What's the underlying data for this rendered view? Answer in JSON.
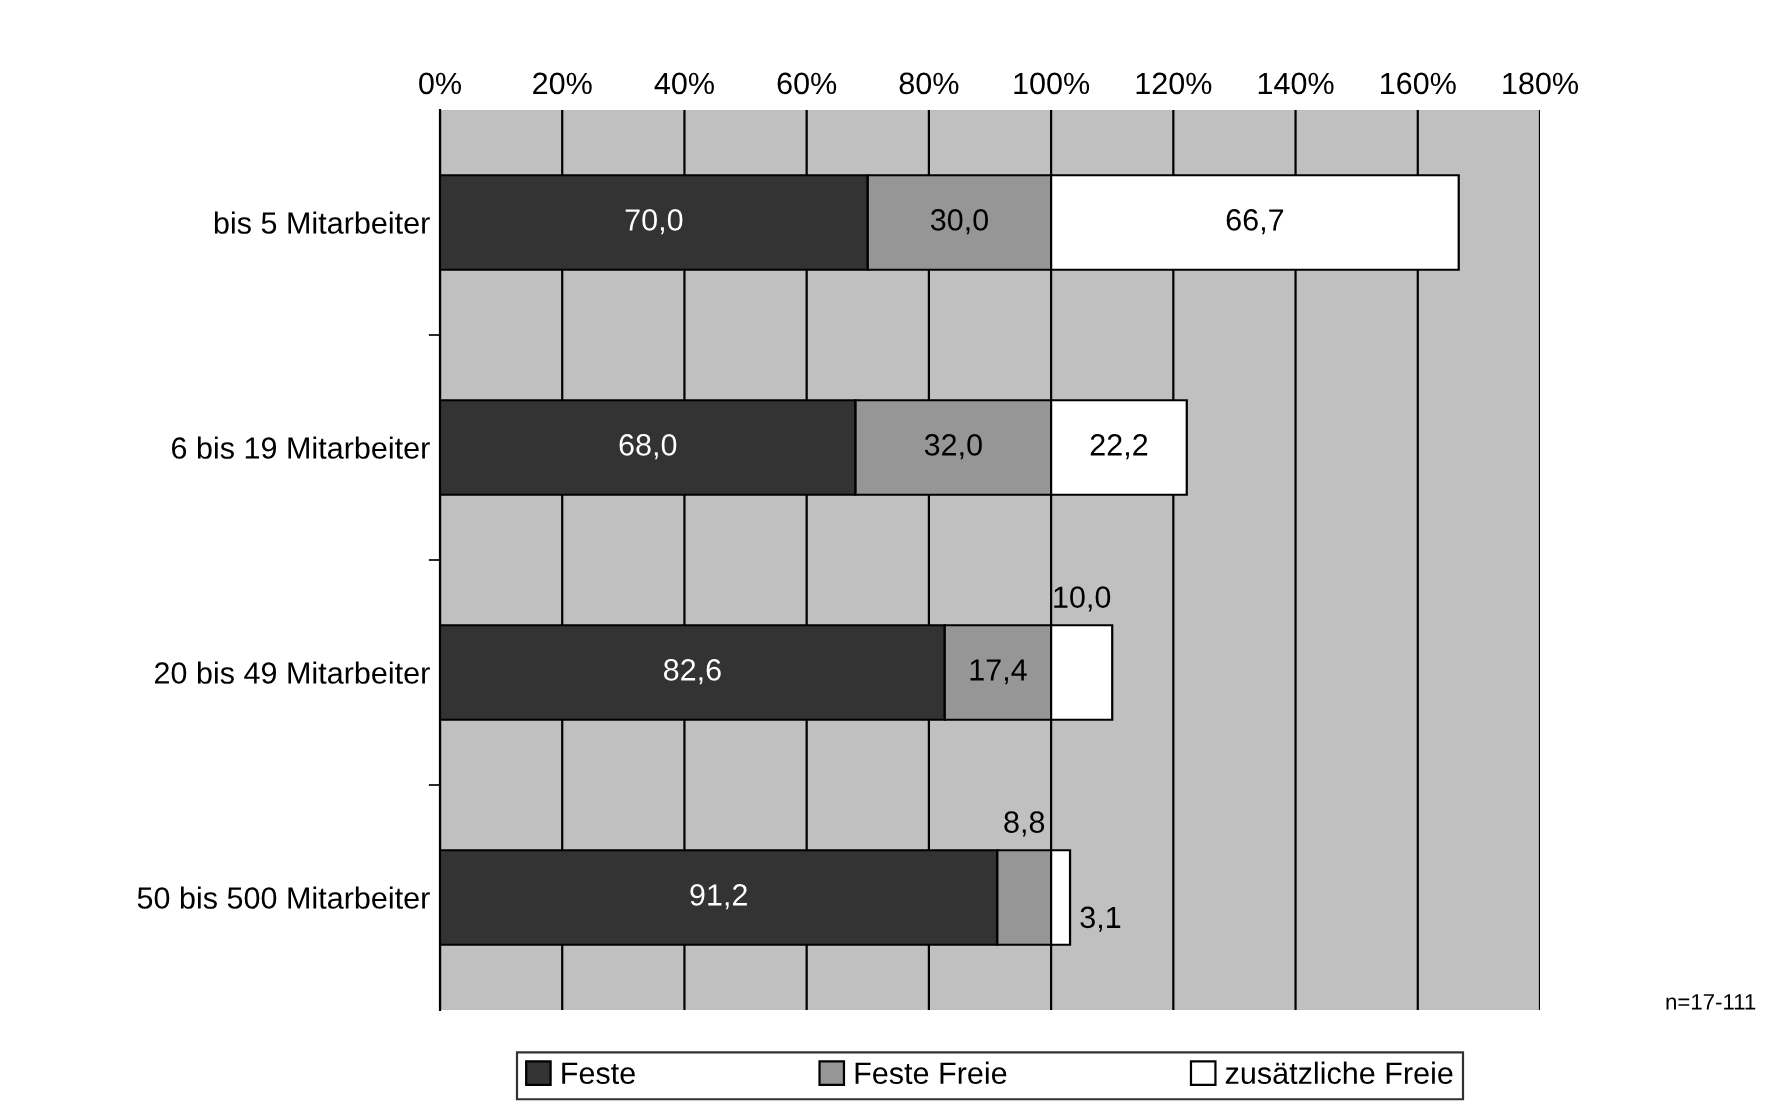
{
  "chart_data": {
    "type": "bar",
    "orientation": "horizontal",
    "stacked": true,
    "categories": [
      "bis 5 Mitarbeiter",
      "6 bis 19 Mitarbeiter",
      "20 bis 49 Mitarbeiter",
      "50 bis 500 Mitarbeiter"
    ],
    "series": [
      {
        "name": "Feste",
        "color": "#333333",
        "values": [
          70.0,
          68.0,
          82.6,
          91.2
        ],
        "value_labels": [
          "70,0",
          "68,0",
          "82,6",
          "91,2"
        ]
      },
      {
        "name": "Feste Freie",
        "color": "#969696",
        "values": [
          30.0,
          32.0,
          17.4,
          8.8
        ],
        "value_labels": [
          "30,0",
          "32,0",
          "17,4",
          "8,8"
        ]
      },
      {
        "name": "zusätzliche Freie",
        "color": "#ffffff",
        "values": [
          66.7,
          22.2,
          10.0,
          3.1
        ],
        "value_labels": [
          "66,7",
          "22,2",
          "10,0",
          "3,1"
        ]
      }
    ],
    "xlim": [
      0,
      180
    ],
    "xticks": [
      {
        "value": 0,
        "label": "0%"
      },
      {
        "value": 20,
        "label": "20%"
      },
      {
        "value": 40,
        "label": "40%"
      },
      {
        "value": 60,
        "label": "60%"
      },
      {
        "value": 80,
        "label": "80%"
      },
      {
        "value": 100,
        "label": "100%"
      },
      {
        "value": 120,
        "label": "120%"
      },
      {
        "value": 140,
        "label": "140%"
      },
      {
        "value": 160,
        "label": "160%"
      },
      {
        "value": 180,
        "label": "180%"
      }
    ],
    "grid": "x",
    "legend": "bottom",
    "annotations": [
      "n=17-111"
    ]
  }
}
